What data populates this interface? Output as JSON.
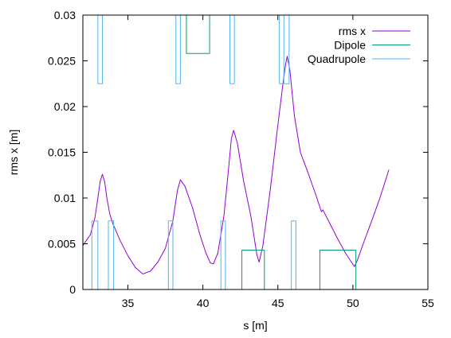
{
  "chart_data": {
    "type": "line",
    "title": "",
    "xlabel": "s [m]",
    "ylabel": "rms x [m]",
    "xlim": [
      32,
      55
    ],
    "ylim": [
      0,
      0.03
    ],
    "x_ticks": [
      35,
      40,
      45,
      50,
      55
    ],
    "x_tick_labels": [
      "35",
      "40",
      "45",
      "50",
      "55"
    ],
    "y_ticks": [
      0,
      0.005,
      0.01,
      0.015,
      0.02,
      0.025,
      0.03
    ],
    "y_tick_labels": [
      "0",
      "0.005",
      "0.01",
      "0.015",
      "0.02",
      "0.025",
      "0.03"
    ],
    "grid": false,
    "legend_position": "top-right",
    "series": [
      {
        "name": "rms x",
        "color": "#9400d3",
        "style": "line",
        "points": [
          [
            32.0,
            0.0048
          ],
          [
            32.5,
            0.006
          ],
          [
            32.8,
            0.0078
          ],
          [
            33.0,
            0.01
          ],
          [
            33.15,
            0.0118
          ],
          [
            33.3,
            0.0126
          ],
          [
            33.45,
            0.0118
          ],
          [
            33.6,
            0.01
          ],
          [
            33.8,
            0.0082
          ],
          [
            34.0,
            0.0072
          ],
          [
            34.5,
            0.0053
          ],
          [
            35.0,
            0.0037
          ],
          [
            35.5,
            0.0024
          ],
          [
            36.0,
            0.0017
          ],
          [
            36.5,
            0.002
          ],
          [
            37.0,
            0.003
          ],
          [
            37.5,
            0.0045
          ],
          [
            38.0,
            0.0075
          ],
          [
            38.3,
            0.0108
          ],
          [
            38.5,
            0.012
          ],
          [
            38.8,
            0.0113
          ],
          [
            39.3,
            0.009
          ],
          [
            39.8,
            0.006
          ],
          [
            40.2,
            0.004
          ],
          [
            40.5,
            0.0029
          ],
          [
            40.7,
            0.0028
          ],
          [
            41.0,
            0.004
          ],
          [
            41.4,
            0.008
          ],
          [
            41.7,
            0.013
          ],
          [
            41.9,
            0.0165
          ],
          [
            42.05,
            0.0174
          ],
          [
            42.3,
            0.016
          ],
          [
            42.7,
            0.012
          ],
          [
            43.2,
            0.008
          ],
          [
            43.6,
            0.0038
          ],
          [
            43.75,
            0.003
          ],
          [
            44.0,
            0.0048
          ],
          [
            44.5,
            0.011
          ],
          [
            45.0,
            0.018
          ],
          [
            45.3,
            0.022
          ],
          [
            45.5,
            0.0245
          ],
          [
            45.62,
            0.0255
          ],
          [
            45.8,
            0.024
          ],
          [
            46.1,
            0.019
          ],
          [
            46.5,
            0.015
          ],
          [
            47.0,
            0.0128
          ],
          [
            47.5,
            0.0105
          ],
          [
            47.8,
            0.009
          ],
          [
            47.9,
            0.0085
          ],
          [
            48.0,
            0.0087
          ],
          [
            48.5,
            0.0071
          ],
          [
            49.0,
            0.0055
          ],
          [
            49.5,
            0.004
          ],
          [
            49.9,
            0.003
          ],
          [
            50.1,
            0.0025
          ],
          [
            50.3,
            0.0032
          ],
          [
            50.8,
            0.0055
          ],
          [
            51.3,
            0.0077
          ],
          [
            51.8,
            0.01
          ],
          [
            52.4,
            0.0131
          ]
        ]
      },
      {
        "name": "Dipole",
        "color": "#009e73",
        "style": "steps",
        "points": [
          [
            38.9,
            0.03
          ],
          [
            38.9,
            0.0258
          ],
          [
            40.45,
            0.0258
          ],
          [
            40.45,
            0.03
          ],
          null,
          [
            42.6,
            0.0
          ],
          [
            42.6,
            0.0043
          ],
          [
            44.1,
            0.0043
          ],
          [
            44.1,
            0.0
          ],
          null,
          [
            47.8,
            0.0
          ],
          [
            47.8,
            0.0043
          ],
          [
            50.2,
            0.0043
          ],
          [
            50.2,
            0.0
          ]
        ]
      },
      {
        "name": "Quadrupole",
        "color": "#56b4e9",
        "style": "steps",
        "points": [
          [
            33.0,
            0.03
          ],
          [
            33.0,
            0.0225
          ],
          [
            33.3,
            0.0225
          ],
          [
            33.3,
            0.03
          ],
          null,
          [
            38.2,
            0.03
          ],
          [
            38.2,
            0.0225
          ],
          [
            38.5,
            0.0225
          ],
          [
            38.5,
            0.03
          ],
          null,
          [
            41.8,
            0.03
          ],
          [
            41.8,
            0.0225
          ],
          [
            42.1,
            0.0225
          ],
          [
            42.1,
            0.03
          ],
          null,
          [
            45.1,
            0.03
          ],
          [
            45.1,
            0.0225
          ],
          [
            45.4,
            0.0225
          ],
          [
            45.4,
            0.03
          ],
          null,
          [
            45.4,
            0.03
          ],
          [
            45.4,
            0.0225
          ],
          [
            45.75,
            0.0225
          ],
          [
            45.75,
            0.03
          ],
          null,
          [
            32.6,
            0.0
          ],
          [
            32.6,
            0.0075
          ],
          [
            33.0,
            0.0075
          ],
          [
            33.0,
            0.0
          ],
          null,
          [
            33.7,
            0.0
          ],
          [
            33.7,
            0.0075
          ],
          [
            34.05,
            0.0075
          ],
          [
            34.05,
            0.0
          ],
          null,
          [
            37.7,
            0.0
          ],
          [
            37.7,
            0.0075
          ],
          [
            38.0,
            0.0075
          ],
          [
            38.0,
            0.0
          ],
          null,
          [
            41.2,
            0.0
          ],
          [
            41.2,
            0.0075
          ],
          [
            41.5,
            0.0075
          ],
          [
            41.5,
            0.0
          ],
          null,
          [
            45.9,
            0.0
          ],
          [
            45.9,
            0.0075
          ],
          [
            46.2,
            0.0075
          ],
          [
            46.2,
            0.0
          ]
        ]
      }
    ]
  }
}
